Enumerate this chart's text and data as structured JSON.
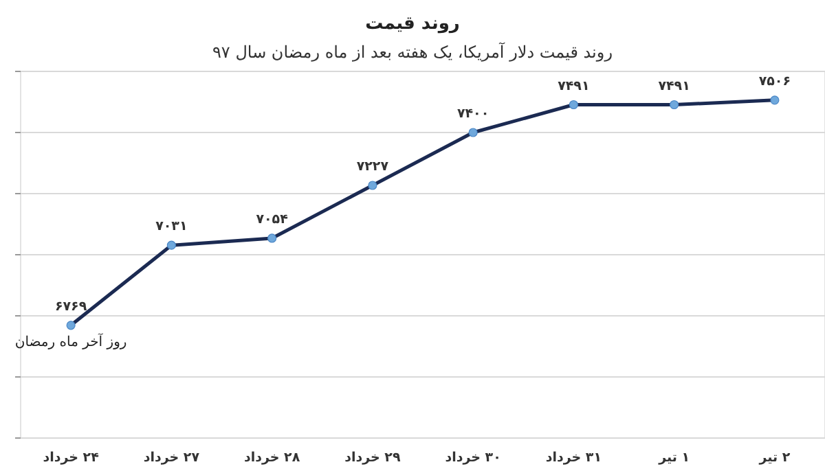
{
  "chart_data": {
    "type": "line",
    "title": "روند قیمت",
    "subtitle": "روند قیمت دلار آمریکا، یک هفته بعد از ماه رمضان سال ۹۷",
    "categories": [
      "۲۴ خرداد",
      "۲۷ خرداد",
      "۲۸ خرداد",
      "۲۹ خرداد",
      "۳۰ خرداد",
      "۳۱ خرداد",
      "۱ تیر",
      "۲ تیر"
    ],
    "series": [
      {
        "color": "#1b2a52",
        "values": [
          6769,
          7031,
          7054,
          7227,
          7400,
          7491,
          7491,
          7506
        ],
        "value_labels": [
          "۶۷۶۹",
          "۷۰۳۱",
          "۷۰۵۴",
          "۷۲۲۷",
          "۷۴۰۰",
          "۷۴۹۱",
          "۷۴۹۱",
          "۷۵۰۶"
        ]
      }
    ],
    "ylim": [
      6400,
      7600
    ],
    "yticks": [
      {
        "value": 6400,
        "label": null
      },
      {
        "value": 6600,
        "label": null
      },
      {
        "value": 6800,
        "label": null
      },
      {
        "value": 7000,
        "label": null
      },
      {
        "value": 7200,
        "label": null
      },
      {
        "value": 7400,
        "label": null
      },
      {
        "value": 7600,
        "label": null
      }
    ],
    "tick_labels": "x",
    "grid": "y",
    "marker": "circle",
    "line_style": "solid",
    "annotations": [
      {
        "text": "روز آخر ماه رمضان",
        "x": "۲۴ خرداد",
        "y": 6769
      }
    ]
  }
}
